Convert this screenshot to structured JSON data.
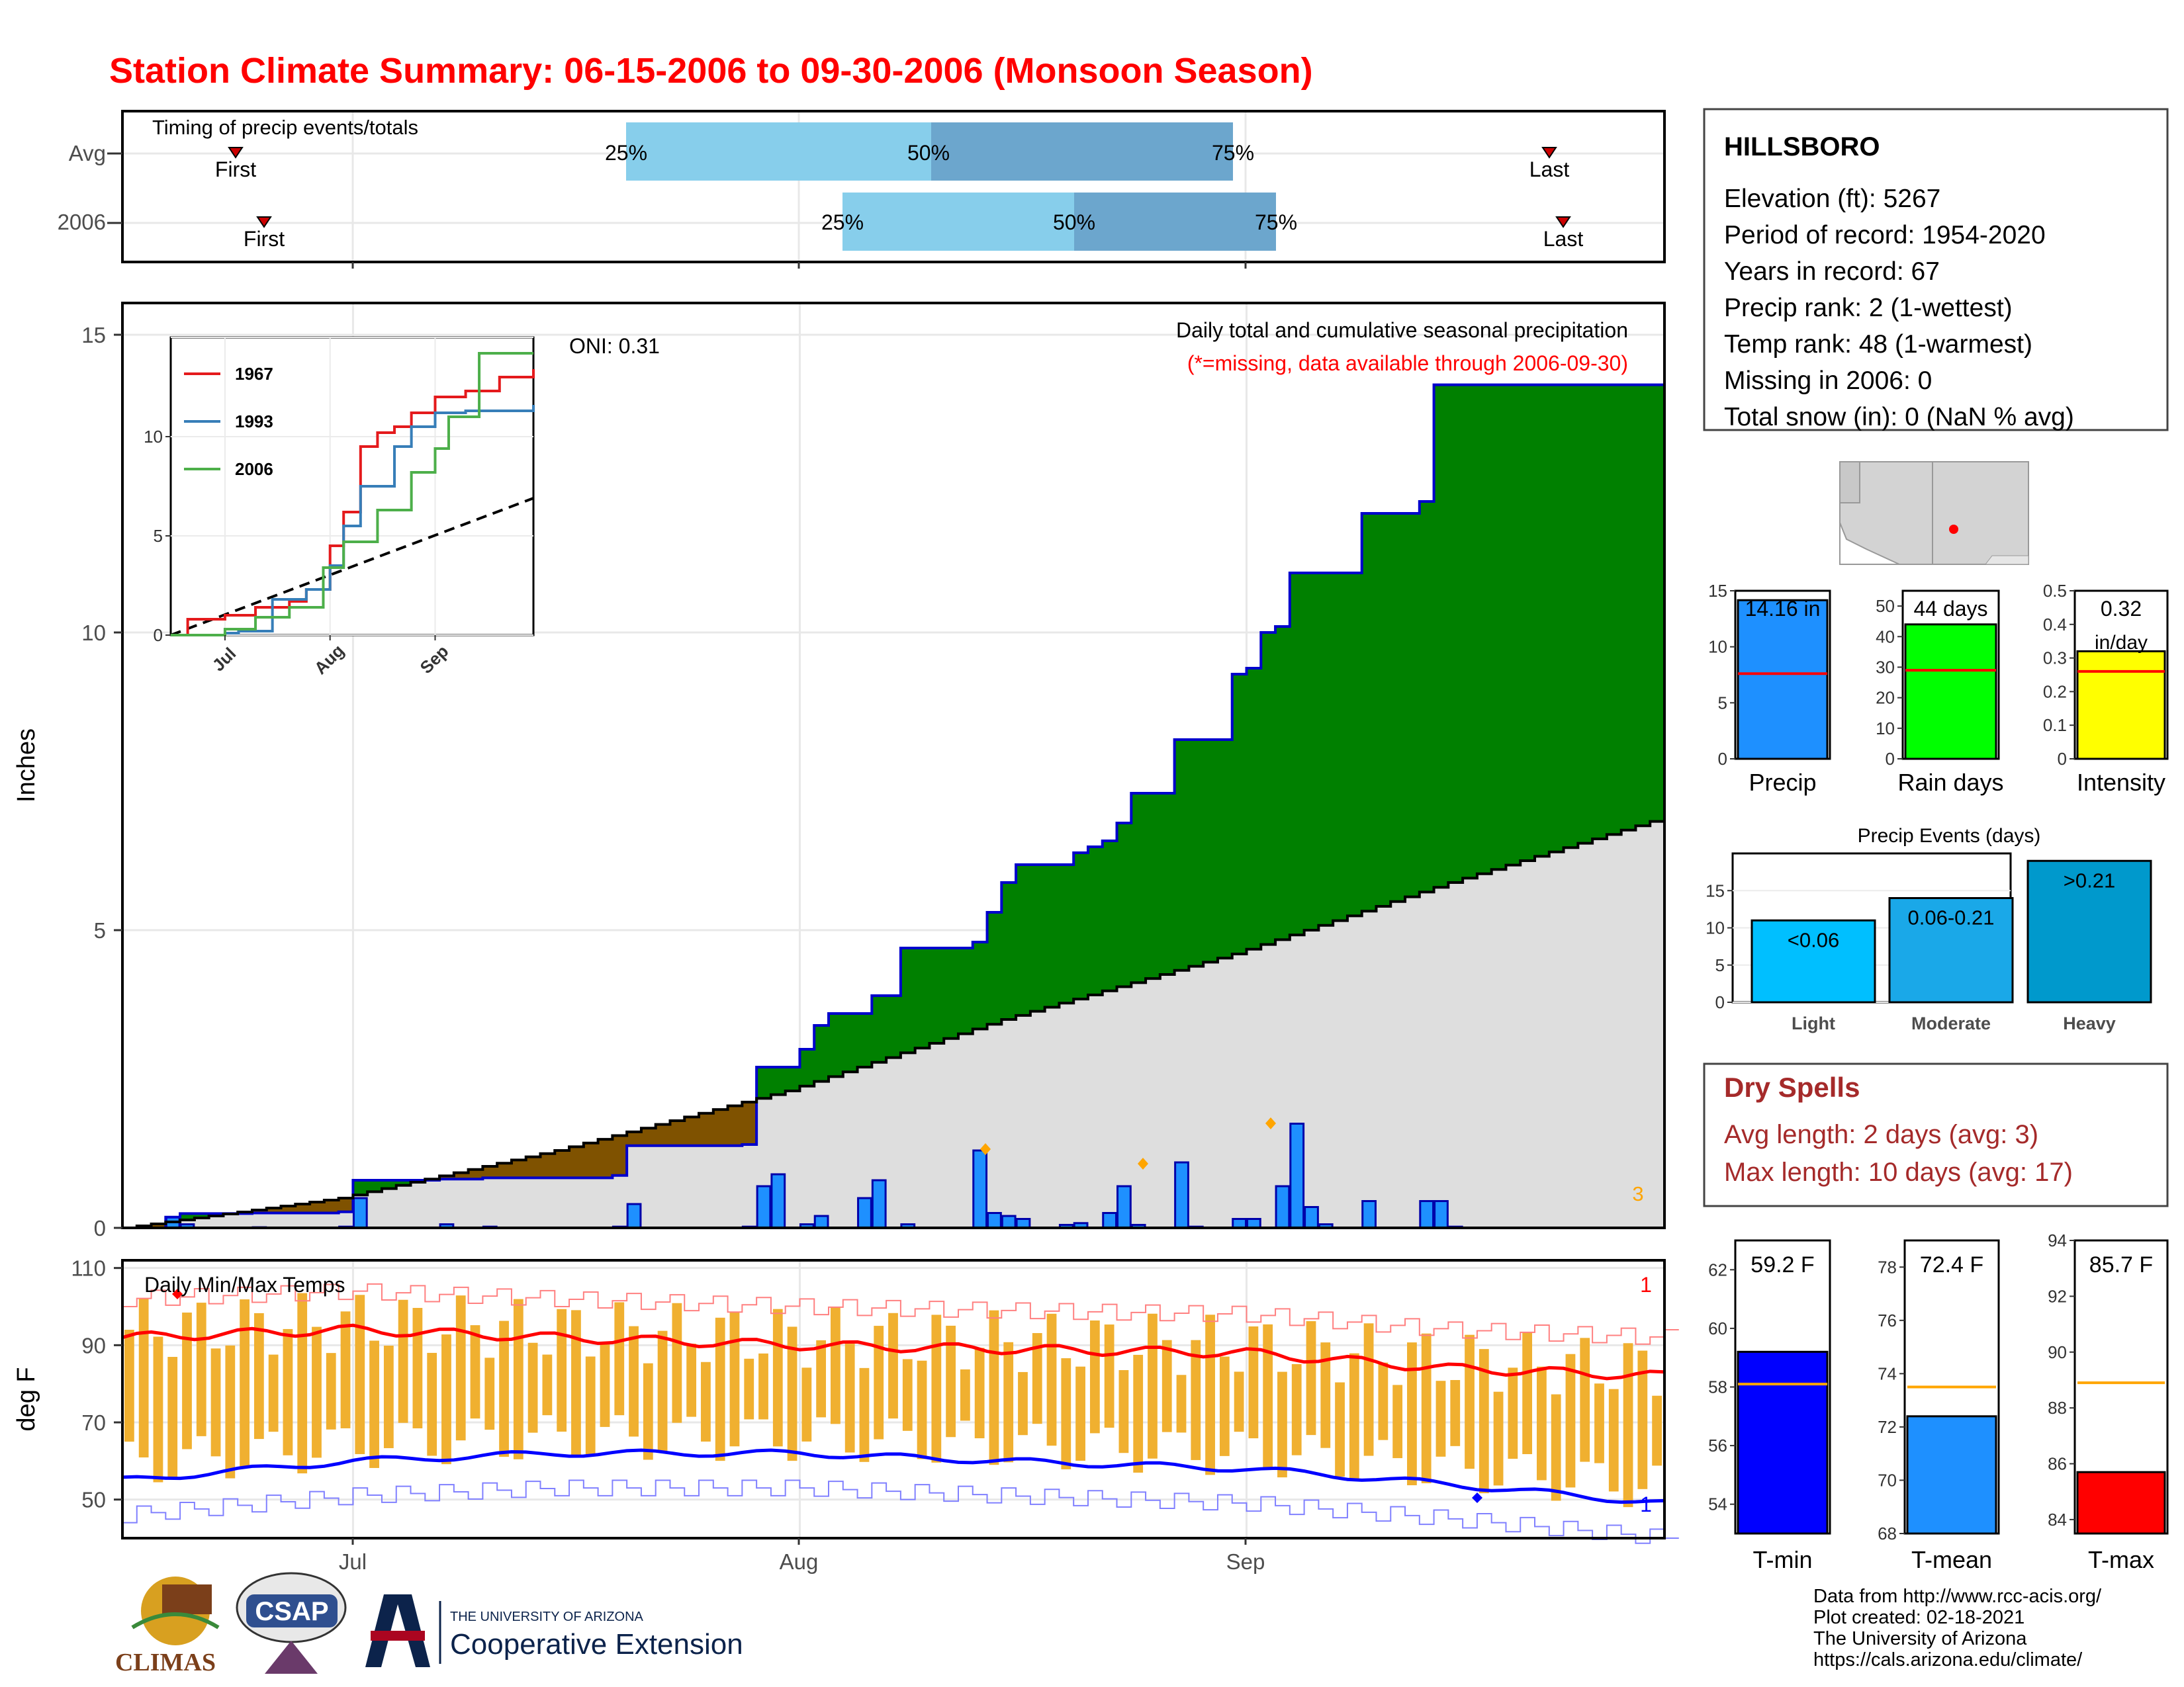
{
  "title": "Station Climate Summary: 06-15-2006 to 09-30-2006 (Monsoon Season)",
  "timing": {
    "title": "Timing of precip events/totals",
    "rows": [
      {
        "label": "Avg",
        "first_label": "First",
        "last_label": "Last",
        "p25": "25%",
        "p50": "50%",
        "p75": "75%"
      },
      {
        "label": "2006",
        "first_label": "First",
        "last_label": "Last",
        "p25": "25%",
        "p50": "50%",
        "p75": "75%"
      }
    ]
  },
  "station": {
    "name": "HILLSBORO",
    "lines": [
      "Elevation (ft): 5267",
      "Period of record: 1954-2020",
      "Years in record: 67",
      "Precip rank: 2 (1-wettest)",
      "Temp rank: 48 (1-warmest)",
      "Missing in 2006: 0",
      "Total snow (in): 0 (NaN % avg)"
    ]
  },
  "main_plot": {
    "title": "Daily total and cumulative seasonal precipitation",
    "subtitle": "(*=missing, data available through 2006-09-30)",
    "oni": "ONI: 0.31",
    "ylabel": "Inches",
    "corner_count": "3"
  },
  "inset_legend": [
    "1967",
    "1993",
    "2006"
  ],
  "temp_panel": {
    "title": "Daily Min/Max Temps",
    "ylabel": "deg F",
    "record_high_count": "1",
    "record_low_count": "1"
  },
  "x_months": [
    "Jul",
    "Aug",
    "Sep"
  ],
  "bars_top": {
    "precip": {
      "label": "Precip",
      "value_text": "14.16 in"
    },
    "rain_days": {
      "label": "Rain days",
      "value_text": "44 days"
    },
    "intensity": {
      "label": "Intensity",
      "value_text": "0.32",
      "value_unit": "in/day"
    }
  },
  "events": {
    "title": "Precip Events (days)",
    "categories": [
      "Light",
      "Moderate",
      "Heavy"
    ],
    "bar_labels": [
      "<0.06",
      "0.06-0.21",
      ">0.21"
    ]
  },
  "dry_spells": {
    "title": "Dry Spells",
    "avg": "Avg length: 2 days (avg: 3)",
    "max": "Max length: 10 days (avg: 17)"
  },
  "temps_small": {
    "tmin": {
      "label": "T-min",
      "value_text": "59.2 F"
    },
    "tmean": {
      "label": "T-mean",
      "value_text": "72.4 F"
    },
    "tmax": {
      "label": "T-max",
      "value_text": "85.7 F"
    }
  },
  "credits": [
    "Data from http://www.rcc-acis.org/",
    "Plot created: 02-18-2021",
    "The University of Arizona",
    "https://cals.arizona.edu/climate/"
  ],
  "logos": {
    "climas": "CLIMAS",
    "csap": "CSAP",
    "ua_top": "THE UNIVERSITY OF ARIZONA",
    "ua_bottom": "Cooperative Extension"
  },
  "colors": {
    "title": "#ff0000",
    "cum_2006": "#0000cc",
    "above_avg": "#008000",
    "below_avg": "#7f5200",
    "daily_bar": "#1e90ff",
    "temp_bar": "#f0b030",
    "avg_high": "#ff0000",
    "avg_low": "#0000ff",
    "dry_spells": "#a52a2a"
  },
  "chart_data": [
    {
      "type": "area",
      "ylim": [
        0,
        15
      ],
      "yticks": [
        0,
        5,
        10,
        15
      ],
      "xlim": [
        "2006-06-15",
        "2006-09-30"
      ],
      "series": [
        {
          "x": [
            "2006-06-15",
            "2006-06-18",
            "2006-06-19",
            "2006-06-24",
            "2006-06-30",
            "2006-07-01",
            "2006-07-07",
            "2006-07-10",
            "2006-07-19",
            "2006-07-20",
            "2006-07-28",
            "2006-07-29",
            "2006-08-01",
            "2006-08-02",
            "2006-08-03",
            "2006-08-06",
            "2006-08-08",
            "2006-08-13",
            "2006-08-14",
            "2006-08-15",
            "2006-08-16",
            "2006-08-20",
            "2006-08-21",
            "2006-08-22",
            "2006-08-23",
            "2006-08-24",
            "2006-08-27",
            "2006-08-31",
            "2006-09-01",
            "2006-09-02",
            "2006-09-03",
            "2006-09-04",
            "2006-09-09",
            "2006-09-13",
            "2006-09-14",
            "2006-09-30"
          ],
          "values": [
            0.0,
            0.18,
            0.24,
            0.25,
            0.27,
            0.8,
            0.82,
            0.84,
            0.88,
            1.38,
            1.4,
            2.7,
            3.0,
            3.4,
            3.6,
            3.9,
            4.7,
            4.8,
            5.3,
            5.8,
            6.1,
            6.3,
            6.4,
            6.5,
            6.8,
            7.3,
            8.2,
            9.3,
            9.4,
            10.0,
            10.1,
            11.0,
            12.0,
            12.2,
            14.16,
            14.16
          ]
        },
        {
          "x": [
            "2006-06-15",
            "2006-06-30",
            "2006-07-15",
            "2006-07-31",
            "2006-08-15",
            "2006-08-31",
            "2006-09-15",
            "2006-09-30"
          ],
          "values": [
            0.0,
            0.5,
            1.3,
            2.3,
            3.5,
            4.6,
            5.8,
            6.9
          ]
        }
      ]
    },
    {
      "type": "bar",
      "x": [
        "2006-06-18",
        "2006-06-19",
        "2006-06-24",
        "2006-06-30",
        "2006-07-01",
        "2006-07-07",
        "2006-07-10",
        "2006-07-19",
        "2006-07-20",
        "2006-07-28",
        "2006-07-29",
        "2006-07-30",
        "2006-08-01",
        "2006-08-02",
        "2006-08-05",
        "2006-08-06",
        "2006-08-08",
        "2006-08-13",
        "2006-08-14",
        "2006-08-15",
        "2006-08-16",
        "2006-08-19",
        "2006-08-20",
        "2006-08-22",
        "2006-08-23",
        "2006-08-24",
        "2006-08-27",
        "2006-08-28",
        "2006-08-31",
        "2006-09-01",
        "2006-09-03",
        "2006-09-04",
        "2006-09-05",
        "2006-09-06",
        "2006-09-09",
        "2006-09-13",
        "2006-09-14",
        "2006-09-15"
      ],
      "values": [
        0.18,
        0.06,
        0.01,
        0.02,
        0.5,
        0.06,
        0.02,
        0.02,
        0.4,
        0.02,
        0.7,
        0.9,
        0.06,
        0.2,
        0.5,
        0.8,
        0.06,
        1.3,
        0.25,
        0.2,
        0.15,
        0.05,
        0.08,
        0.25,
        0.7,
        0.05,
        1.1,
        0.02,
        0.15,
        0.15,
        0.7,
        1.75,
        0.35,
        0.06,
        0.45,
        0.45,
        0.45,
        0.02
      ]
    },
    {
      "type": "line",
      "title": "",
      "ylim": [
        0,
        15
      ],
      "yticks": [
        0,
        5,
        10
      ],
      "series": [
        {
          "name": "1967",
          "x": [
            "2006-06-15",
            "2006-06-20",
            "2006-07-01",
            "2006-07-10",
            "2006-07-20",
            "2006-07-25",
            "2006-08-01",
            "2006-08-05",
            "2006-08-10",
            "2006-08-15",
            "2006-08-20",
            "2006-08-25",
            "2006-09-01",
            "2006-09-10",
            "2006-09-20",
            "2006-09-30"
          ],
          "values": [
            0,
            0.8,
            1.0,
            1.4,
            1.7,
            2.3,
            4.5,
            6.2,
            9.5,
            10.2,
            10.5,
            11.2,
            12.0,
            12.3,
            13.0,
            13.4
          ]
        },
        {
          "name": "1993",
          "x": [
            "2006-06-15",
            "2006-07-01",
            "2006-07-05",
            "2006-07-15",
            "2006-07-25",
            "2006-08-01",
            "2006-08-05",
            "2006-08-10",
            "2006-08-20",
            "2006-08-25",
            "2006-09-01",
            "2006-09-10",
            "2006-09-30"
          ],
          "values": [
            0,
            0.1,
            0.2,
            1.8,
            2.3,
            3.5,
            5.5,
            7.5,
            9.5,
            10.5,
            11.2,
            11.3,
            11.6
          ]
        },
        {
          "name": "2006",
          "x": [
            "2006-06-15",
            "2006-07-01",
            "2006-07-10",
            "2006-07-20",
            "2006-07-30",
            "2006-08-05",
            "2006-08-15",
            "2006-08-25",
            "2006-09-01",
            "2006-09-05",
            "2006-09-14",
            "2006-09-30"
          ],
          "values": [
            0,
            0.3,
            0.9,
            1.4,
            3.4,
            4.7,
            6.3,
            8.2,
            9.4,
            11.0,
            14.2,
            14.2
          ]
        },
        {
          "name": "",
          "x": [
            "2006-06-15",
            "2006-09-30"
          ],
          "values": [
            0,
            6.9
          ]
        }
      ]
    },
    {
      "type": "bar",
      "ylim": [
        40,
        110
      ],
      "yticks": [
        50,
        70,
        90,
        110
      ],
      "series": [
        {
          "name": "",
          "x": [
            "2006-06-15",
            "2006-07-01",
            "2006-07-15",
            "2006-08-01",
            "2006-08-15",
            "2006-09-01",
            "2006-09-15",
            "2006-09-30"
          ],
          "values": [
            92,
            94,
            92,
            90,
            89,
            88,
            84,
            82
          ]
        },
        {
          "name": "",
          "x": [
            "2006-06-15",
            "2006-07-01",
            "2006-07-15",
            "2006-08-01",
            "2006-08-15",
            "2006-09-01",
            "2006-09-15",
            "2006-09-30"
          ],
          "values": [
            55,
            60,
            62,
            62,
            60,
            58,
            54,
            49
          ]
        }
      ]
    },
    {
      "type": "bar",
      "categories": [
        "Precip",
        "Rain days",
        "Intensity"
      ],
      "values": [
        14.16,
        44,
        0.32
      ],
      "averages": [
        7.6,
        29,
        0.26
      ],
      "ylims": [
        [
          0,
          15
        ],
        [
          0,
          55
        ],
        [
          0,
          0.5
        ]
      ]
    },
    {
      "type": "bar",
      "title": "Precip Events (days)",
      "categories": [
        "Light",
        "Moderate",
        "Heavy"
      ],
      "values": [
        11,
        14,
        19
      ],
      "ylim": [
        0,
        20
      ]
    },
    {
      "type": "bar",
      "categories": [
        "T-min",
        "T-mean",
        "T-max"
      ],
      "values": [
        59.2,
        72.4,
        85.7
      ],
      "averages": [
        58.1,
        73.5,
        88.9
      ],
      "ylims": [
        [
          53,
          63
        ],
        [
          68,
          79
        ],
        [
          83.5,
          94
        ]
      ]
    }
  ]
}
